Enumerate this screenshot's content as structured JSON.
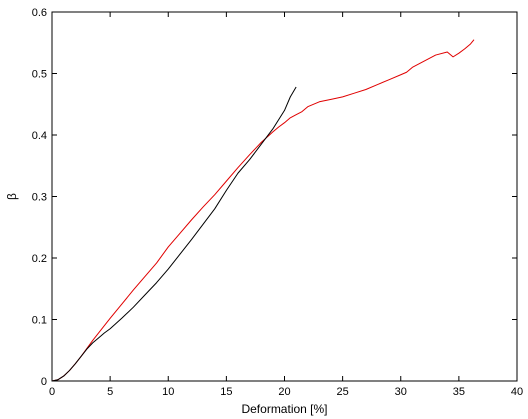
{
  "chart_data": {
    "type": "line",
    "title": "",
    "xlabel": "Deformation [%]",
    "ylabel": "β",
    "xlim": [
      0,
      40
    ],
    "ylim": [
      0,
      0.6
    ],
    "xticks": [
      0,
      5,
      10,
      15,
      20,
      25,
      30,
      35,
      40
    ],
    "yticks": [
      0,
      0.1,
      0.2,
      0.3,
      0.4,
      0.5,
      0.6
    ],
    "grid": false,
    "legend": "none",
    "series": [
      {
        "color": "#e00000",
        "x": [
          0,
          0.5,
          1,
          1.5,
          2,
          2.5,
          3,
          3.5,
          4,
          4.5,
          5,
          6,
          7,
          8,
          9,
          10,
          11,
          12,
          13,
          14,
          15,
          16,
          17,
          18,
          19,
          19.5,
          20,
          20.5,
          21,
          21.5,
          22,
          23,
          24,
          25,
          26,
          27,
          28,
          29,
          30,
          30.5,
          31,
          32,
          33,
          34,
          34.5,
          35,
          35.5,
          36,
          36.3
        ],
        "y": [
          0,
          0.002,
          0.008,
          0.017,
          0.028,
          0.04,
          0.053,
          0.066,
          0.078,
          0.09,
          0.102,
          0.125,
          0.148,
          0.17,
          0.192,
          0.218,
          0.24,
          0.262,
          0.283,
          0.303,
          0.325,
          0.347,
          0.368,
          0.388,
          0.405,
          0.413,
          0.42,
          0.428,
          0.433,
          0.438,
          0.446,
          0.454,
          0.458,
          0.462,
          0.468,
          0.474,
          0.482,
          0.49,
          0.498,
          0.502,
          0.51,
          0.52,
          0.53,
          0.535,
          0.527,
          0.533,
          0.54,
          0.548,
          0.555
        ]
      },
      {
        "color": "#000000",
        "x": [
          0,
          0.5,
          1,
          1.5,
          2,
          2.5,
          3,
          3.5,
          4,
          4.5,
          5,
          6,
          7,
          8,
          9,
          10,
          11,
          12,
          13,
          14,
          15,
          16,
          17,
          18,
          19,
          19.5,
          20,
          20.5,
          21
        ],
        "y": [
          0,
          0.002,
          0.008,
          0.017,
          0.028,
          0.04,
          0.052,
          0.062,
          0.07,
          0.078,
          0.085,
          0.102,
          0.12,
          0.14,
          0.16,
          0.182,
          0.206,
          0.23,
          0.255,
          0.28,
          0.31,
          0.338,
          0.36,
          0.385,
          0.41,
          0.425,
          0.44,
          0.462,
          0.478
        ]
      }
    ]
  }
}
